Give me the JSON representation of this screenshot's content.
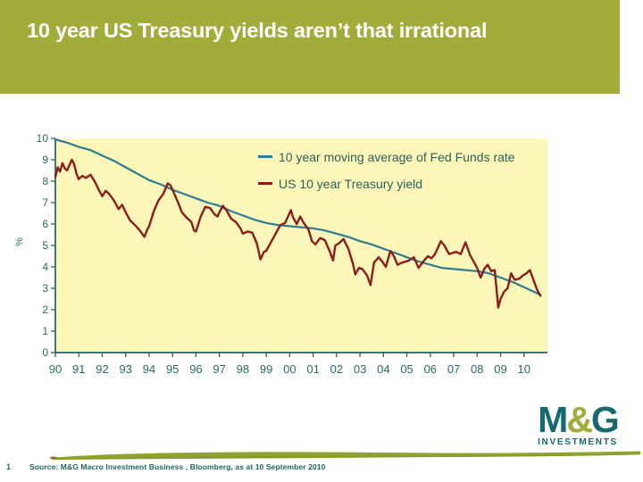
{
  "slide": {
    "title": "10 year US Treasury yields aren’t that irrational",
    "page_number": "1",
    "source": "Source: M&G Macro Investment Business , Bloomberg, as at 10 September 2010"
  },
  "logo": {
    "m": "M",
    "amp": "&",
    "g": "G",
    "investments": "INVESTMENTS"
  },
  "colors": {
    "title_bar": "#A2AC3A",
    "title_text": "#FFFFFF",
    "plot_bg": "#FCF7B8",
    "axis": "#1E6660",
    "tick_label": "#2B6B66",
    "blue_line": "#2C7C94",
    "red_line": "#8E1C1C",
    "legend_text": "#2C605B",
    "logo_teal": "#17696E",
    "logo_olive": "#A2AC3A",
    "brush": "#8FA42F",
    "footer_text": "#1E6660"
  },
  "chart_data": {
    "type": "line",
    "title": "",
    "xlabel": "",
    "ylabel": "%",
    "ylim": [
      0,
      10
    ],
    "yticks": [
      0,
      1,
      2,
      3,
      4,
      5,
      6,
      7,
      8,
      9,
      10
    ],
    "xlim": [
      1990,
      2011
    ],
    "xtick_years": [
      1990,
      1991,
      1992,
      1993,
      1994,
      1995,
      1996,
      1997,
      1998,
      1999,
      2000,
      2001,
      2002,
      2003,
      2004,
      2005,
      2006,
      2007,
      2008,
      2009,
      2010
    ],
    "xtick_labels": [
      "90",
      "91",
      "92",
      "93",
      "94",
      "95",
      "96",
      "97",
      "98",
      "99",
      "00",
      "01",
      "02",
      "03",
      "04",
      "05",
      "06",
      "07",
      "08",
      "09",
      "10"
    ],
    "grid": false,
    "legend_position": "top-right-inside",
    "series": [
      {
        "name": "10 year moving average of Fed Funds rate",
        "color": "#2C7C94",
        "width": 2.2,
        "points": [
          [
            1990.0,
            9.95
          ],
          [
            1990.5,
            9.8
          ],
          [
            1991.0,
            9.6
          ],
          [
            1991.5,
            9.45
          ],
          [
            1992.0,
            9.2
          ],
          [
            1992.5,
            8.95
          ],
          [
            1993.0,
            8.65
          ],
          [
            1993.5,
            8.35
          ],
          [
            1994.0,
            8.05
          ],
          [
            1994.5,
            7.85
          ],
          [
            1995.0,
            7.6
          ],
          [
            1995.5,
            7.4
          ],
          [
            1996.0,
            7.2
          ],
          [
            1996.5,
            7.0
          ],
          [
            1997.0,
            6.85
          ],
          [
            1997.5,
            6.6
          ],
          [
            1998.0,
            6.4
          ],
          [
            1998.5,
            6.2
          ],
          [
            1999.0,
            6.05
          ],
          [
            1999.5,
            5.95
          ],
          [
            2000.0,
            5.9
          ],
          [
            2000.5,
            5.85
          ],
          [
            2001.0,
            5.8
          ],
          [
            2001.5,
            5.7
          ],
          [
            2002.0,
            5.55
          ],
          [
            2002.5,
            5.4
          ],
          [
            2003.0,
            5.2
          ],
          [
            2003.5,
            5.05
          ],
          [
            2004.0,
            4.85
          ],
          [
            2004.5,
            4.65
          ],
          [
            2005.0,
            4.45
          ],
          [
            2005.5,
            4.25
          ],
          [
            2006.0,
            4.1
          ],
          [
            2006.5,
            3.95
          ],
          [
            2007.0,
            3.9
          ],
          [
            2007.5,
            3.85
          ],
          [
            2008.0,
            3.8
          ],
          [
            2008.5,
            3.7
          ],
          [
            2009.0,
            3.5
          ],
          [
            2009.5,
            3.3
          ],
          [
            2010.0,
            3.05
          ],
          [
            2010.4,
            2.85
          ],
          [
            2010.7,
            2.7
          ]
        ]
      },
      {
        "name": "US 10 year Treasury yield",
        "color": "#8E1C1C",
        "width": 2.4,
        "points": [
          [
            1990.0,
            8.2
          ],
          [
            1990.1,
            8.65
          ],
          [
            1990.2,
            8.45
          ],
          [
            1990.3,
            8.85
          ],
          [
            1990.4,
            8.6
          ],
          [
            1990.5,
            8.5
          ],
          [
            1990.6,
            8.75
          ],
          [
            1990.7,
            9.0
          ],
          [
            1990.8,
            8.8
          ],
          [
            1990.9,
            8.35
          ],
          [
            1991.0,
            8.1
          ],
          [
            1991.15,
            8.25
          ],
          [
            1991.3,
            8.15
          ],
          [
            1991.5,
            8.3
          ],
          [
            1991.7,
            7.95
          ],
          [
            1991.85,
            7.6
          ],
          [
            1992.0,
            7.3
          ],
          [
            1992.15,
            7.55
          ],
          [
            1992.3,
            7.4
          ],
          [
            1992.5,
            7.1
          ],
          [
            1992.7,
            6.7
          ],
          [
            1992.85,
            6.9
          ],
          [
            1993.0,
            6.55
          ],
          [
            1993.2,
            6.15
          ],
          [
            1993.4,
            5.95
          ],
          [
            1993.6,
            5.7
          ],
          [
            1993.8,
            5.4
          ],
          [
            1993.92,
            5.75
          ],
          [
            1994.0,
            5.9
          ],
          [
            1994.2,
            6.6
          ],
          [
            1994.4,
            7.1
          ],
          [
            1994.6,
            7.4
          ],
          [
            1994.8,
            7.9
          ],
          [
            1994.92,
            7.8
          ],
          [
            1995.0,
            7.6
          ],
          [
            1995.2,
            7.1
          ],
          [
            1995.4,
            6.55
          ],
          [
            1995.6,
            6.3
          ],
          [
            1995.8,
            6.1
          ],
          [
            1995.92,
            5.7
          ],
          [
            1996.0,
            5.65
          ],
          [
            1996.2,
            6.35
          ],
          [
            1996.4,
            6.8
          ],
          [
            1996.6,
            6.75
          ],
          [
            1996.8,
            6.45
          ],
          [
            1996.92,
            6.35
          ],
          [
            1997.0,
            6.55
          ],
          [
            1997.15,
            6.85
          ],
          [
            1997.3,
            6.65
          ],
          [
            1997.5,
            6.25
          ],
          [
            1997.7,
            6.1
          ],
          [
            1997.9,
            5.8
          ],
          [
            1998.0,
            5.55
          ],
          [
            1998.2,
            5.65
          ],
          [
            1998.4,
            5.6
          ],
          [
            1998.6,
            5.1
          ],
          [
            1998.75,
            4.35
          ],
          [
            1998.9,
            4.7
          ],
          [
            1999.0,
            4.75
          ],
          [
            1999.2,
            5.15
          ],
          [
            1999.4,
            5.55
          ],
          [
            1999.6,
            5.95
          ],
          [
            1999.8,
            6.05
          ],
          [
            1999.95,
            6.4
          ],
          [
            2000.05,
            6.65
          ],
          [
            2000.15,
            6.3
          ],
          [
            2000.3,
            6.0
          ],
          [
            2000.45,
            6.35
          ],
          [
            2000.6,
            6.05
          ],
          [
            2000.8,
            5.75
          ],
          [
            2000.95,
            5.2
          ],
          [
            2001.1,
            5.05
          ],
          [
            2001.3,
            5.35
          ],
          [
            2001.5,
            5.25
          ],
          [
            2001.7,
            4.75
          ],
          [
            2001.85,
            4.3
          ],
          [
            2001.95,
            5.0
          ],
          [
            2002.1,
            5.1
          ],
          [
            2002.3,
            5.3
          ],
          [
            2002.5,
            4.85
          ],
          [
            2002.7,
            4.15
          ],
          [
            2002.8,
            3.65
          ],
          [
            2002.95,
            3.95
          ],
          [
            2003.1,
            3.9
          ],
          [
            2003.3,
            3.6
          ],
          [
            2003.45,
            3.15
          ],
          [
            2003.6,
            4.2
          ],
          [
            2003.8,
            4.45
          ],
          [
            2003.95,
            4.25
          ],
          [
            2004.1,
            4.0
          ],
          [
            2004.3,
            4.75
          ],
          [
            2004.45,
            4.5
          ],
          [
            2004.6,
            4.1
          ],
          [
            2004.8,
            4.2
          ],
          [
            2004.95,
            4.25
          ],
          [
            2005.1,
            4.3
          ],
          [
            2005.3,
            4.45
          ],
          [
            2005.5,
            3.95
          ],
          [
            2005.7,
            4.25
          ],
          [
            2005.9,
            4.5
          ],
          [
            2006.05,
            4.4
          ],
          [
            2006.2,
            4.6
          ],
          [
            2006.45,
            5.2
          ],
          [
            2006.6,
            5.0
          ],
          [
            2006.8,
            4.6
          ],
          [
            2006.95,
            4.65
          ],
          [
            2007.1,
            4.7
          ],
          [
            2007.3,
            4.6
          ],
          [
            2007.5,
            5.15
          ],
          [
            2007.7,
            4.55
          ],
          [
            2007.9,
            4.15
          ],
          [
            2008.0,
            3.95
          ],
          [
            2008.15,
            3.5
          ],
          [
            2008.3,
            3.9
          ],
          [
            2008.45,
            4.1
          ],
          [
            2008.6,
            3.8
          ],
          [
            2008.75,
            3.85
          ],
          [
            2008.9,
            2.1
          ],
          [
            2009.0,
            2.5
          ],
          [
            2009.15,
            2.85
          ],
          [
            2009.3,
            3.0
          ],
          [
            2009.45,
            3.7
          ],
          [
            2009.6,
            3.4
          ],
          [
            2009.8,
            3.45
          ],
          [
            2009.95,
            3.6
          ],
          [
            2010.1,
            3.7
          ],
          [
            2010.25,
            3.85
          ],
          [
            2010.4,
            3.4
          ],
          [
            2010.55,
            2.95
          ],
          [
            2010.7,
            2.65
          ]
        ]
      }
    ]
  }
}
